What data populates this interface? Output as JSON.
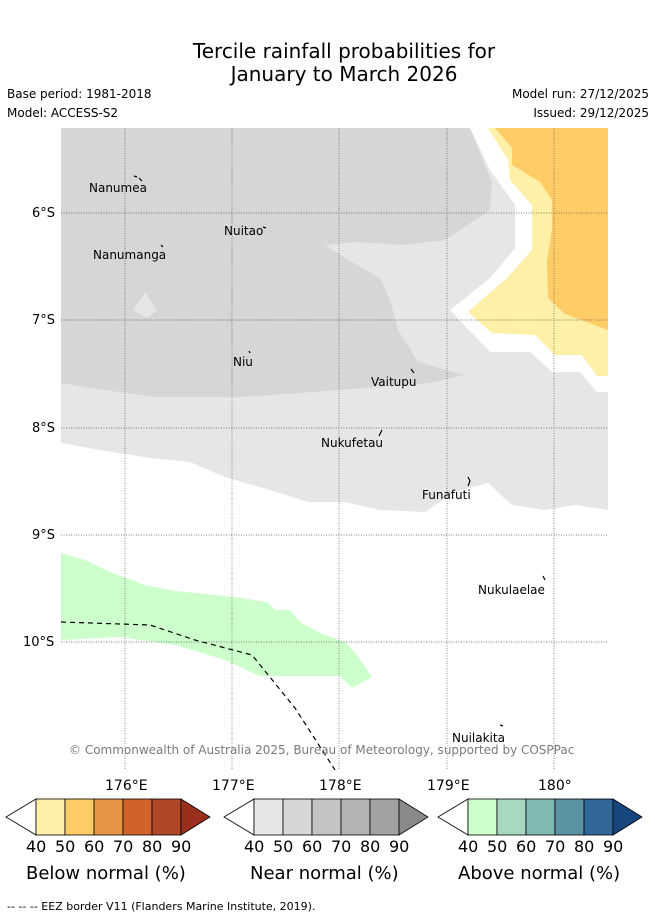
{
  "title": {
    "line1": "Tercile rainfall probabilities for",
    "line2": "January to March 2026"
  },
  "meta": {
    "base_period": "Base period: 1981-2018",
    "model": "Model: ACCESS-S2",
    "model_run": "Model run: 27/12/2025",
    "issued": "Issued: 29/12/2025"
  },
  "map": {
    "lat_labels": [
      "6°S",
      "7°S",
      "8°S",
      "9°S",
      "10°S"
    ],
    "lon_labels": [
      "176°E",
      "177°E",
      "178°E",
      "179°E",
      "180°"
    ],
    "places": [
      "Nanumea",
      "Nuitao",
      "Nanumanga",
      "Niu",
      "Vaitupu",
      "Nukufetau",
      "Funafuti",
      "Nukulaelae",
      "Nuilakita"
    ],
    "copyright": "© Commonwealth of Australia 2025, Bureau of Meteorology, supported by COSPPac"
  },
  "colorbars": {
    "ticks": [
      "40",
      "50",
      "60",
      "70",
      "80",
      "90"
    ],
    "below": {
      "title": "Below normal (%)",
      "colors": [
        "#ffffff",
        "#fff0a8",
        "#ffcc66",
        "#e69545",
        "#d0632c",
        "#b04828",
        "#9a2f1e"
      ]
    },
    "near": {
      "title": "Near normal (%)",
      "colors": [
        "#ffffff",
        "#e6e6e6",
        "#d6d6d6",
        "#c4c4c4",
        "#b3b3b3",
        "#a2a2a2",
        "#8a8a8a"
      ]
    },
    "above": {
      "title": "Above normal (%)",
      "colors": [
        "#ffffff",
        "#ccffcc",
        "#a6d9bf",
        "#80b8b3",
        "#5a93a3",
        "#336699",
        "#17467f"
      ]
    }
  },
  "colors": {
    "below_40_50": "#fff0a8",
    "below_50_60": "#ffcc66",
    "near_40_50": "#e6e6e6",
    "near_50_60": "#d6d6d6",
    "above_40_50": "#ccffcc"
  },
  "footnote": "-- -- -- EEZ border V11 (Flanders Marine Institute, 2019)."
}
